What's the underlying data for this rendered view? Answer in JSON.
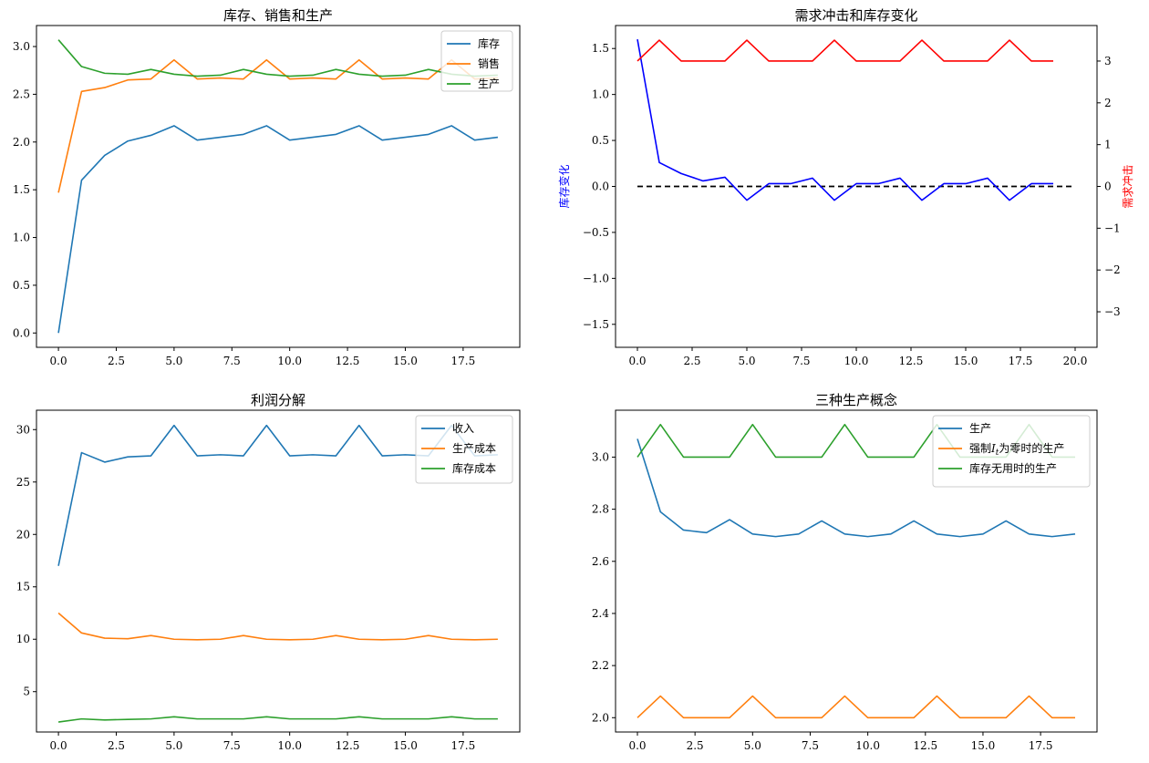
{
  "chart_data": [
    {
      "type": "line",
      "title": "库存、销售和生产",
      "xlabel": "",
      "ylabel": "",
      "xlim": [
        -0.95,
        19.95
      ],
      "ylim": [
        -0.15,
        3.22
      ],
      "xticks": [
        0,
        2.5,
        5,
        7.5,
        10,
        12.5,
        15,
        17.5
      ],
      "xtick_labels": [
        "0.0",
        "2.5",
        "5.0",
        "7.5",
        "10.0",
        "12.5",
        "15.0",
        "17.5"
      ],
      "yticks": [
        0,
        0.5,
        1,
        1.5,
        2,
        2.5,
        3
      ],
      "ytick_labels": [
        "0.0",
        "0.5",
        "1.0",
        "1.5",
        "2.0",
        "2.5",
        "3.0"
      ],
      "legend_position": "top-right",
      "x": [
        0,
        1,
        2,
        3,
        4,
        5,
        6,
        7,
        8,
        9,
        10,
        11,
        12,
        13,
        14,
        15,
        16,
        17,
        18,
        19
      ],
      "series": [
        {
          "name": "库存",
          "color": "#1f77b4",
          "values": [
            0.0,
            1.6,
            1.86,
            2.01,
            2.07,
            2.17,
            2.02,
            2.05,
            2.08,
            2.17,
            2.02,
            2.05,
            2.08,
            2.17,
            2.02,
            2.05,
            2.08,
            2.17,
            2.02,
            2.05
          ]
        },
        {
          "name": "销售",
          "color": "#ff7f0e",
          "values": [
            1.47,
            2.53,
            2.57,
            2.65,
            2.66,
            2.86,
            2.66,
            2.67,
            2.66,
            2.86,
            2.66,
            2.67,
            2.66,
            2.86,
            2.66,
            2.67,
            2.66,
            2.86,
            2.66,
            2.67
          ]
        },
        {
          "name": "生产",
          "color": "#2ca02c",
          "values": [
            3.07,
            2.79,
            2.72,
            2.71,
            2.76,
            2.71,
            2.69,
            2.7,
            2.76,
            2.71,
            2.69,
            2.7,
            2.76,
            2.71,
            2.69,
            2.7,
            2.76,
            2.71,
            2.69,
            2.7
          ]
        }
      ]
    },
    {
      "type": "line",
      "title": "需求冲击和库存变化",
      "xlabel": "",
      "ylabel": "库存变化",
      "ylabel_right": "需求冲击",
      "ylabel_color": "#0000ff",
      "ylabel_right_color": "#ff0000",
      "xlim": [
        -1,
        21
      ],
      "ylim": [
        -1.75,
        1.75
      ],
      "ylim_right": [
        -3.85,
        3.85
      ],
      "xticks": [
        0,
        2.5,
        5,
        7.5,
        10,
        12.5,
        15,
        17.5,
        20
      ],
      "xtick_labels": [
        "0.0",
        "2.5",
        "5.0",
        "7.5",
        "10.0",
        "12.5",
        "15.0",
        "17.5",
        "20.0"
      ],
      "yticks": [
        -1.5,
        -1,
        -0.5,
        0,
        0.5,
        1,
        1.5
      ],
      "ytick_labels": [
        "−1.5",
        "−1.0",
        "−0.5",
        "0.0",
        "0.5",
        "1.0",
        "1.5"
      ],
      "yticks_right": [
        -3,
        -2,
        -1,
        0,
        1,
        2,
        3
      ],
      "ytick_labels_right": [
        "−3",
        "−2",
        "−1",
        "0",
        "1",
        "2",
        "3"
      ],
      "x": [
        0,
        1,
        2,
        3,
        4,
        5,
        6,
        7,
        8,
        9,
        10,
        11,
        12,
        13,
        14,
        15,
        16,
        17,
        18,
        19
      ],
      "series": [
        {
          "name": "库存变化",
          "axis": "left",
          "color": "#0000ff",
          "values": [
            1.6,
            0.26,
            0.14,
            0.06,
            0.1,
            -0.15,
            0.03,
            0.03,
            0.09,
            -0.15,
            0.03,
            0.03,
            0.09,
            -0.15,
            0.03,
            0.03,
            0.09,
            -0.15,
            0.03,
            0.03
          ]
        },
        {
          "name": "需求冲击",
          "axis": "right",
          "color": "#ff0000",
          "values": [
            3.0,
            3.5,
            3.0,
            3.0,
            3.0,
            3.5,
            3.0,
            3.0,
            3.0,
            3.5,
            3.0,
            3.0,
            3.0,
            3.5,
            3.0,
            3.0,
            3.0,
            3.5,
            3.0,
            3.0
          ]
        }
      ],
      "reference_line": {
        "y": 0,
        "x_from": 0,
        "x_to": 20,
        "style": "dashed",
        "color": "#000000"
      }
    },
    {
      "type": "line",
      "title": "利润分解",
      "xlabel": "",
      "ylabel": "",
      "xlim": [
        -0.95,
        19.95
      ],
      "ylim": [
        1.15,
        31.85
      ],
      "xticks": [
        0,
        2.5,
        5,
        7.5,
        10,
        12.5,
        15,
        17.5
      ],
      "xtick_labels": [
        "0.0",
        "2.5",
        "5.0",
        "7.5",
        "10.0",
        "12.5",
        "15.0",
        "17.5"
      ],
      "yticks": [
        5,
        10,
        15,
        20,
        25,
        30
      ],
      "ytick_labels": [
        "5",
        "10",
        "15",
        "20",
        "25",
        "30"
      ],
      "legend_position": "top-right",
      "x": [
        0,
        1,
        2,
        3,
        4,
        5,
        6,
        7,
        8,
        9,
        10,
        11,
        12,
        13,
        14,
        15,
        16,
        17,
        18,
        19
      ],
      "series": [
        {
          "name": "收入",
          "color": "#1f77b4",
          "values": [
            17.0,
            27.8,
            26.9,
            27.4,
            27.5,
            30.4,
            27.5,
            27.6,
            27.5,
            30.4,
            27.5,
            27.6,
            27.5,
            30.4,
            27.5,
            27.6,
            27.5,
            30.4,
            27.5,
            27.6
          ]
        },
        {
          "name": "生产成本",
          "color": "#ff7f0e",
          "values": [
            12.5,
            10.6,
            10.1,
            10.05,
            10.35,
            10.0,
            9.95,
            10.0,
            10.35,
            10.0,
            9.95,
            10.0,
            10.35,
            10.0,
            9.95,
            10.0,
            10.35,
            10.0,
            9.95,
            10.0
          ]
        },
        {
          "name": "库存成本",
          "color": "#2ca02c",
          "values": [
            2.1,
            2.4,
            2.3,
            2.35,
            2.4,
            2.6,
            2.4,
            2.4,
            2.4,
            2.6,
            2.4,
            2.4,
            2.4,
            2.6,
            2.4,
            2.4,
            2.4,
            2.6,
            2.4,
            2.4
          ]
        }
      ]
    },
    {
      "type": "line",
      "title": "三种生产概念",
      "xlabel": "",
      "ylabel": "",
      "xlim": [
        -0.95,
        19.95
      ],
      "ylim": [
        1.945,
        3.18
      ],
      "xticks": [
        0,
        2.5,
        5,
        7.5,
        10,
        12.5,
        15,
        17.5
      ],
      "xtick_labels": [
        "0.0",
        "2.5",
        "5.0",
        "7.5",
        "10.0",
        "12.5",
        "15.0",
        "17.5"
      ],
      "yticks": [
        2.0,
        2.2,
        2.4,
        2.6,
        2.8,
        3.0
      ],
      "ytick_labels": [
        "2.0",
        "2.2",
        "2.4",
        "2.6",
        "2.8",
        "3.0"
      ],
      "legend_position": "top-right",
      "x": [
        0,
        1,
        2,
        3,
        4,
        5,
        6,
        7,
        8,
        9,
        10,
        11,
        12,
        13,
        14,
        15,
        16,
        17,
        18,
        19
      ],
      "series": [
        {
          "name": "生产",
          "color": "#1f77b4",
          "values": [
            3.07,
            2.79,
            2.72,
            2.71,
            2.76,
            2.705,
            2.695,
            2.705,
            2.755,
            2.705,
            2.695,
            2.705,
            2.755,
            2.705,
            2.695,
            2.705,
            2.755,
            2.705,
            2.695,
            2.705
          ]
        },
        {
          "name": "强制",
          "name_italic": "I",
          "name_sub": "t",
          "name_suffix": "为零时的生产",
          "color": "#ff7f0e",
          "values": [
            2.0,
            2.083,
            2.0,
            2.0,
            2.0,
            2.083,
            2.0,
            2.0,
            2.0,
            2.083,
            2.0,
            2.0,
            2.0,
            2.083,
            2.0,
            2.0,
            2.0,
            2.083,
            2.0,
            2.0
          ]
        },
        {
          "name": "库存无用时的生产",
          "color": "#2ca02c",
          "values": [
            3.0,
            3.125,
            3.0,
            3.0,
            3.0,
            3.125,
            3.0,
            3.0,
            3.0,
            3.125,
            3.0,
            3.0,
            3.0,
            3.125,
            3.0,
            3.0,
            3.0,
            3.125,
            3.0,
            3.0
          ]
        }
      ]
    }
  ]
}
